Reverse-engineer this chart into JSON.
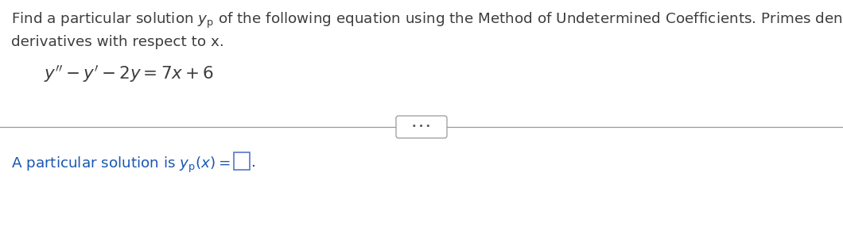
{
  "bg_color": "#ffffff",
  "text_color": "#3d3d3d",
  "blue_color": "#1a56b0",
  "line_color": "#999999",
  "dots_color": "#555555",
  "font_size_main": 13.2,
  "font_size_eq": 15.5,
  "line1": "Find a particular solution $y_{\\mathrm{p}}$ of the following equation using the Method of Undetermined Coefficients. Primes denote the",
  "line2": "derivatives with respect to x.",
  "equation": "$y'' - y' - 2y = 7x + 6$",
  "bottom_prefix": "A particular solution is $y_{\\mathrm{p}}(x) =$",
  "bottom_suffix": ".",
  "dots_text": "• • •"
}
